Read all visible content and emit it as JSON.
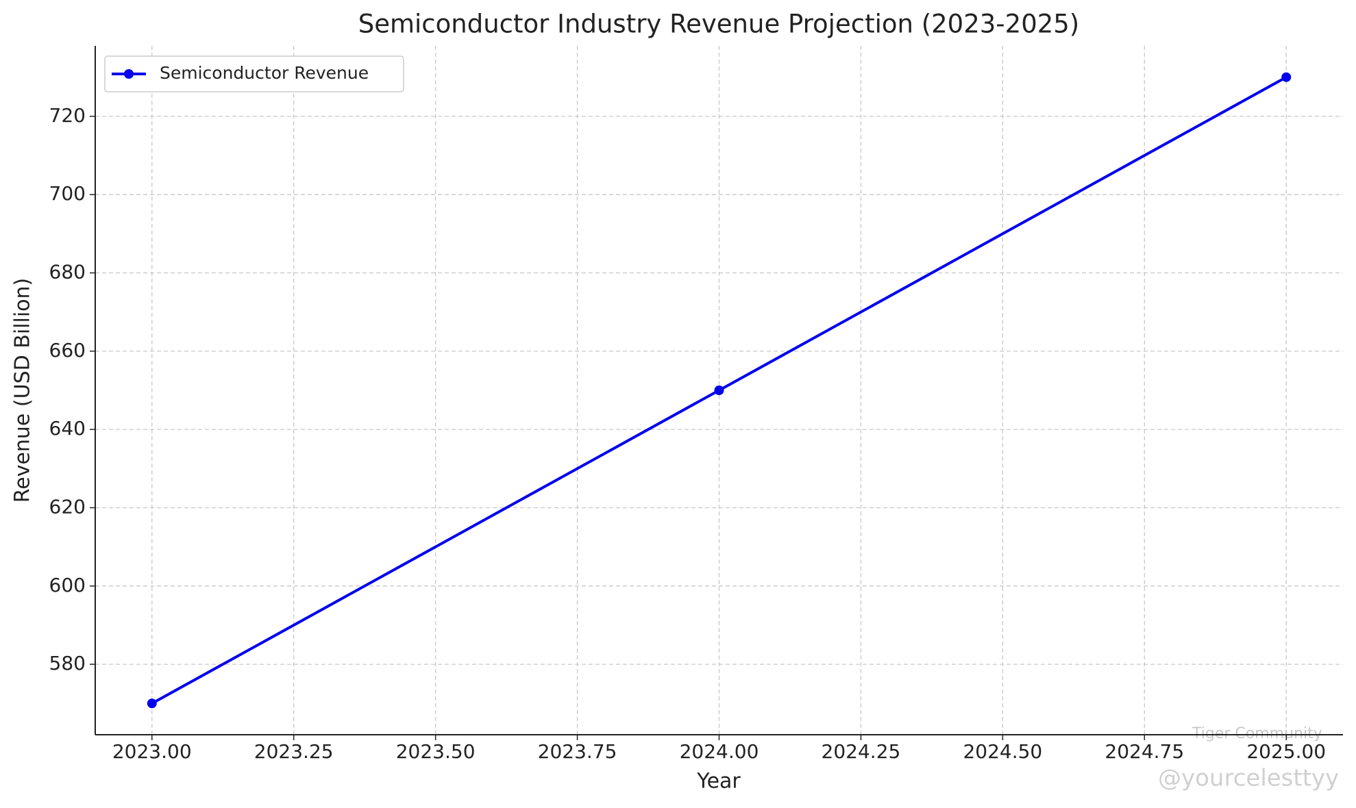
{
  "chart_data": {
    "type": "line",
    "title": "Semiconductor Industry Revenue Projection (2023-2025)",
    "xlabel": "Year",
    "ylabel": "Revenue (USD Billion)",
    "x": [
      2023,
      2024,
      2025
    ],
    "series": [
      {
        "name": "Semiconductor Revenue",
        "color": "#0000ee",
        "values": [
          570,
          650,
          730
        ]
      }
    ],
    "xlim": [
      2022.9,
      2025.1
    ],
    "xticks": [
      {
        "value": 2023,
        "label": "2023.00"
      },
      {
        "value": 2023.25,
        "label": "2023.25"
      },
      {
        "value": 2023.5,
        "label": "2023.50"
      },
      {
        "value": 2023.75,
        "label": "2023.75"
      },
      {
        "value": 2024,
        "label": "2024.00"
      },
      {
        "value": 2024.25,
        "label": "2024.25"
      },
      {
        "value": 2024.5,
        "label": "2024.50"
      },
      {
        "value": 2024.75,
        "label": "2024.75"
      },
      {
        "value": 2025,
        "label": "2025.00"
      }
    ],
    "ylim": [
      562,
      738
    ],
    "yticks": [
      580,
      600,
      620,
      640,
      660,
      680,
      700,
      720
    ],
    "grid": true,
    "legend": "upper left",
    "watermark": [
      "Tiger Community",
      "@yourcelesttyy"
    ]
  }
}
